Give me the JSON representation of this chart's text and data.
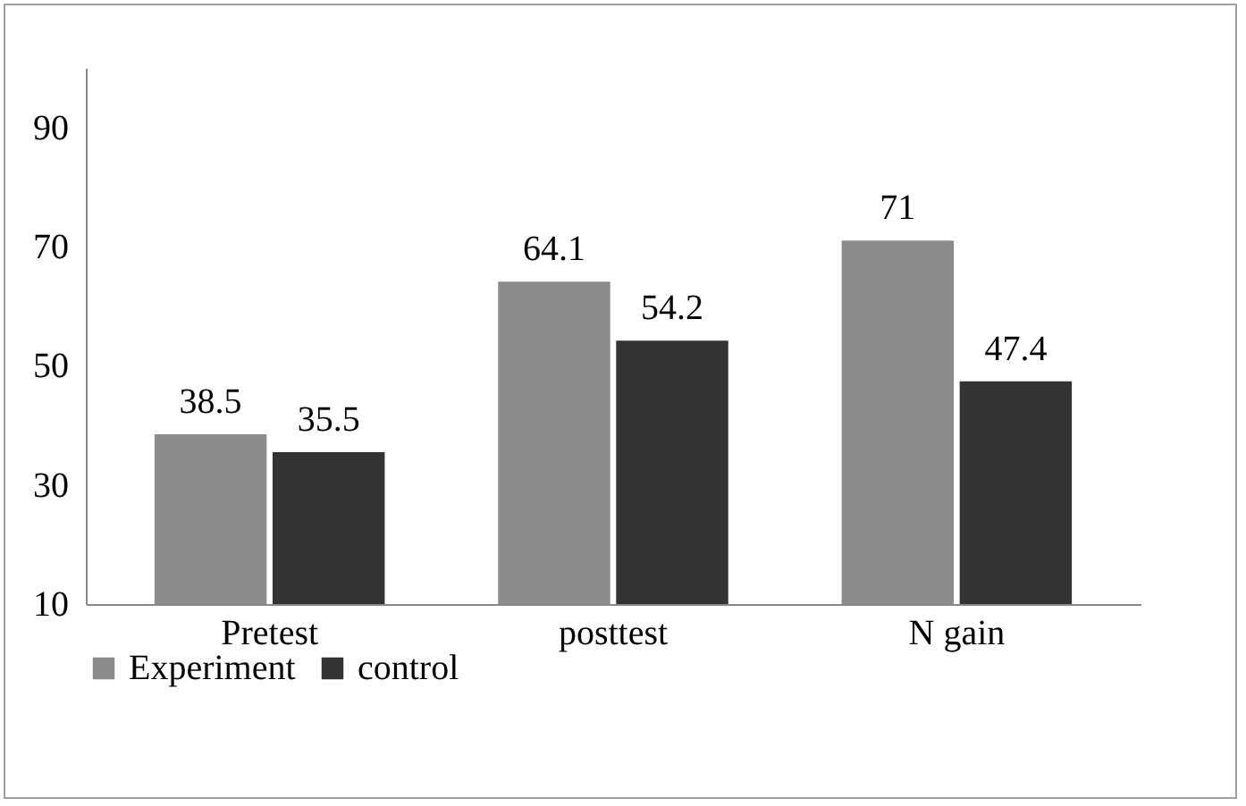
{
  "chart_data": {
    "type": "bar",
    "categories": [
      "Pretest",
      "posttest",
      "N gain"
    ],
    "series": [
      {
        "name": "Experiment",
        "color": "#8c8c8c",
        "values": [
          38.5,
          64.1,
          71
        ]
      },
      {
        "name": "control",
        "color": "#333333",
        "values": [
          35.5,
          54.2,
          47.4
        ]
      }
    ],
    "ylim": [
      10,
      100
    ],
    "yticks": [
      10,
      30,
      50,
      70,
      90
    ],
    "grid": false,
    "legend": "bottom",
    "data_labels": true
  }
}
